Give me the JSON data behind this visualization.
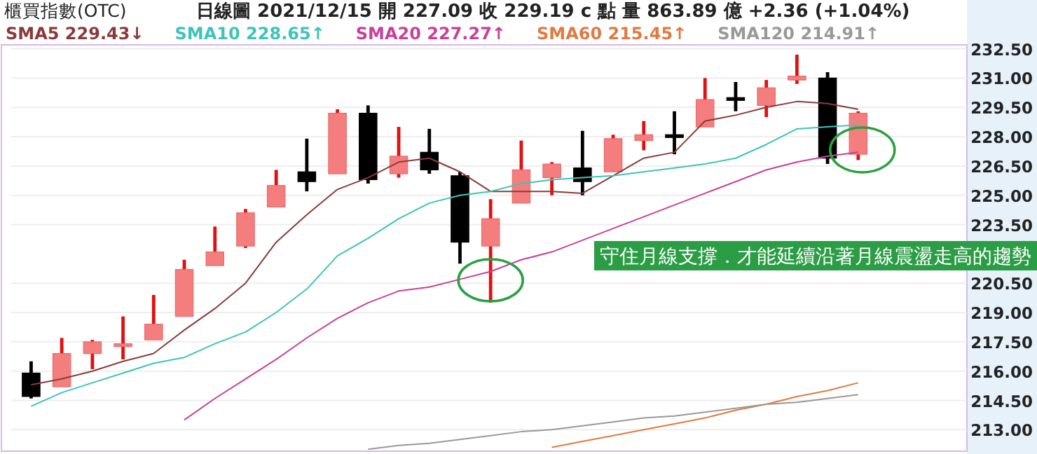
{
  "chart_data": {
    "type": "candlestick",
    "title": "櫃買指數(OTC)",
    "subtitle": "日線圖 2021/12/15 開 227.09 收 229.19 c 點 量 863.89 億 +2.36 (+1.04%)",
    "categories": [
      null,
      null,
      null,
      null,
      null,
      null,
      null,
      null,
      null,
      null,
      null,
      null,
      null,
      null,
      null,
      null,
      null,
      null,
      null,
      null,
      null,
      null,
      null,
      null,
      null,
      null,
      null,
      null
    ],
    "ohlc": [
      [
        215.9,
        216.5,
        214.6,
        214.7
      ],
      [
        215.2,
        217.7,
        215.2,
        216.9
      ],
      [
        216.9,
        217.6,
        216.1,
        217.5
      ],
      [
        217.3,
        218.8,
        216.6,
        217.4
      ],
      [
        217.6,
        219.9,
        217.6,
        218.4
      ],
      [
        218.8,
        221.7,
        218.8,
        221.2
      ],
      [
        221.4,
        223.4,
        221.4,
        222.1
      ],
      [
        222.4,
        224.3,
        222.3,
        224.1
      ],
      [
        224.4,
        226.3,
        224.4,
        225.5
      ],
      [
        226.2,
        227.9,
        225.2,
        225.7
      ],
      [
        226.1,
        229.4,
        226.1,
        229.2
      ],
      [
        229.2,
        229.6,
        225.6,
        225.8
      ],
      [
        226.1,
        228.5,
        225.9,
        227.0
      ],
      [
        227.2,
        228.4,
        226.1,
        226.3
      ],
      [
        226.0,
        226.2,
        221.5,
        222.6
      ],
      [
        222.4,
        224.8,
        219.5,
        223.8
      ],
      [
        224.6,
        227.8,
        224.6,
        226.3
      ],
      [
        225.9,
        226.7,
        225.0,
        226.6
      ],
      [
        226.4,
        228.3,
        225.0,
        225.7
      ],
      [
        226.2,
        228.1,
        226.2,
        227.9
      ],
      [
        227.8,
        228.8,
        227.3,
        228.1
      ],
      [
        228.1,
        229.3,
        227.1,
        228.0
      ],
      [
        228.5,
        231.0,
        228.5,
        229.9
      ],
      [
        230.0,
        230.8,
        229.3,
        229.9
      ],
      [
        229.6,
        230.9,
        229.0,
        230.5
      ],
      [
        230.9,
        232.2,
        230.7,
        231.1
      ],
      [
        231.0,
        231.3,
        226.6,
        226.9
      ],
      [
        227.1,
        229.3,
        226.8,
        229.2
      ]
    ],
    "series": [
      {
        "type": "line",
        "name": "SMA5 229.43↓",
        "color": "#8b3a3a",
        "values": [
          215.3,
          215.6,
          216.0,
          216.5,
          216.9,
          218.1,
          219.2,
          220.5,
          222.6,
          224.0,
          225.3,
          225.9,
          226.7,
          226.9,
          226.2,
          225.2,
          225.2,
          225.2,
          225.1,
          226.0,
          226.9,
          227.2,
          228.8,
          229.1,
          229.5,
          229.8,
          229.7,
          229.4
        ]
      },
      {
        "type": "line",
        "name": "SMA10 228.65↑",
        "color": "#3cc4bc",
        "values": [
          214.2,
          214.9,
          215.4,
          215.9,
          216.4,
          216.7,
          217.4,
          218.0,
          219.0,
          220.2,
          221.9,
          222.8,
          223.8,
          224.6,
          225.0,
          225.2,
          225.6,
          225.8,
          225.9,
          226.0,
          226.2,
          226.4,
          226.6,
          226.9,
          227.6,
          228.4,
          228.5,
          228.6
        ]
      },
      {
        "type": "line",
        "name": "SMA20 227.27↑",
        "color": "#c8409a",
        "values": [
          null,
          null,
          null,
          null,
          null,
          213.5,
          214.6,
          215.6,
          216.6,
          217.7,
          218.7,
          219.5,
          220.1,
          220.3,
          220.7,
          221.1,
          221.7,
          222.1,
          222.7,
          223.3,
          223.9,
          224.5,
          225.1,
          225.7,
          226.3,
          226.7,
          227.0,
          227.2
        ]
      },
      {
        "type": "line",
        "name": "SMA60 215.45↑",
        "color": "#e07a40",
        "values": [
          null,
          null,
          null,
          null,
          null,
          null,
          null,
          null,
          null,
          null,
          null,
          null,
          null,
          null,
          null,
          null,
          null,
          212.1,
          212.4,
          212.7,
          213.0,
          213.3,
          213.6,
          214.0,
          214.3,
          214.7,
          215.0,
          215.4
        ]
      },
      {
        "type": "line",
        "name": "SMA120 214.91↑",
        "color": "#999999",
        "values": [
          null,
          null,
          null,
          null,
          null,
          null,
          null,
          null,
          null,
          null,
          null,
          212.0,
          212.2,
          212.3,
          212.5,
          212.7,
          212.9,
          213.0,
          213.2,
          213.4,
          213.6,
          213.7,
          213.9,
          214.1,
          214.3,
          214.4,
          214.6,
          214.8
        ]
      }
    ],
    "ylim": [
      211.9,
      232.7
    ],
    "yticks": [
      {
        "value": 213,
        "label": "213.00"
      },
      {
        "value": 214.5,
        "label": "214.50"
      },
      {
        "value": 216,
        "label": "216.00"
      },
      {
        "value": 217.5,
        "label": "217.50"
      },
      {
        "value": 219,
        "label": "219.00"
      },
      {
        "value": 220.5,
        "label": "220.50"
      },
      {
        "value": 223.5,
        "label": "223.50"
      },
      {
        "value": 225,
        "label": "225.00"
      },
      {
        "value": 226.5,
        "label": "226.50"
      },
      {
        "value": 228,
        "label": "228.00"
      },
      {
        "value": 229.5,
        "label": "229.50"
      },
      {
        "value": 231,
        "label": "231.00"
      },
      {
        "value": 232.5,
        "label": "232.50"
      }
    ],
    "grid": "y",
    "legend": "top",
    "tick_labels": "y",
    "annotations": [
      "守住月線支撐．才能延續沿著月線震盪走高的趨勢"
    ]
  }
}
